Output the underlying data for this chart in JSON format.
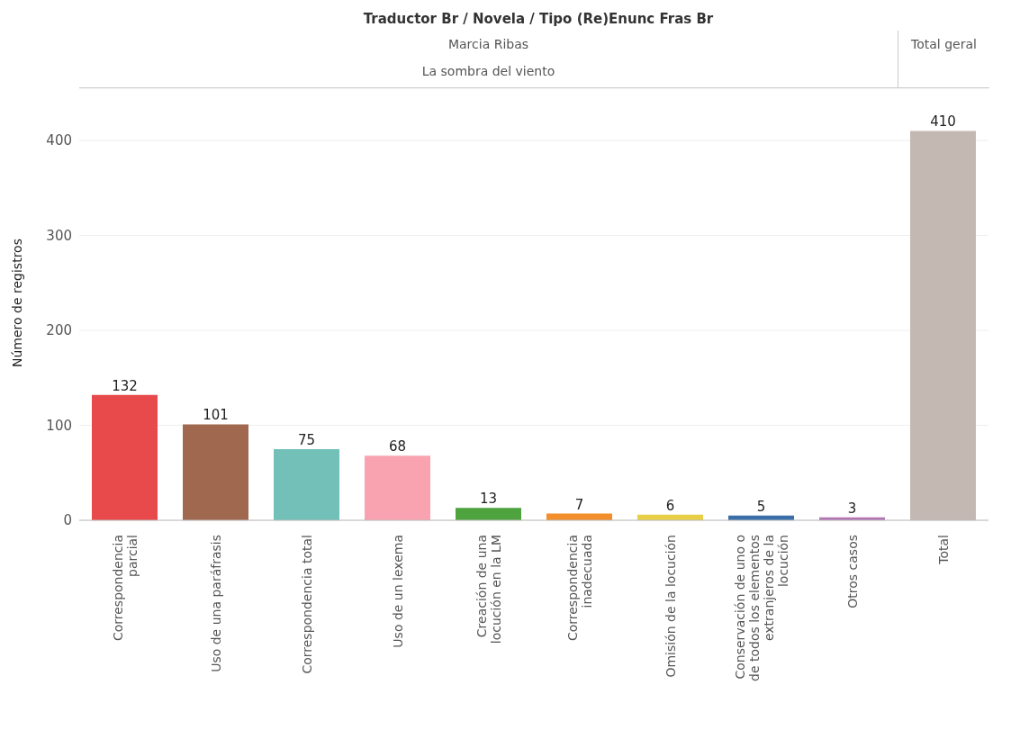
{
  "chart_data": {
    "type": "bar",
    "title": "Traductor Br / Novela / Tipo (Re)Enunc Fras Br",
    "annotations": [
      "Marcia Ribas",
      "La sombra del viento",
      "Total geral"
    ],
    "ylabel": "Número de registros",
    "categories": [
      "Correspondencia parcial",
      "Uso de una paráfrasis",
      "Correspondencia total",
      "Uso de un lexema",
      "Creación de una locución en la LM",
      "Correspondencia inadecuada",
      "Omisión de la locución",
      "Conservación de uno o de todos los elementos extranjeros de la locución",
      "Otros casos",
      "Total"
    ],
    "values": [
      132,
      101,
      75,
      68,
      13,
      7,
      6,
      5,
      3,
      410
    ],
    "colors": [
      "#e8494a",
      "#a0694f",
      "#72c0b8",
      "#f9a3b0",
      "#4ea33e",
      "#f28e2b",
      "#e8cf45",
      "#3a6fa8",
      "#b276b2",
      "#c4b8b2"
    ],
    "ylim": [
      0,
      455
    ],
    "yticks": [
      0,
      100,
      200,
      300,
      400
    ],
    "grid": "y",
    "data_labels": true,
    "legend": false
  }
}
